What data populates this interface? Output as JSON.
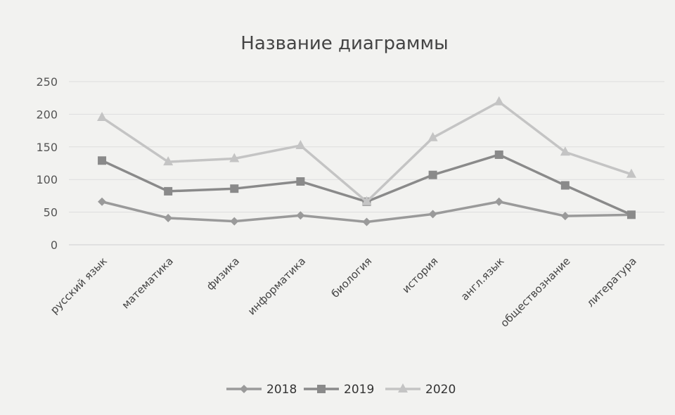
{
  "chart_data": {
    "type": "line",
    "title": "Название диаграммы",
    "xlabel": "",
    "ylabel": "",
    "ylim": [
      0,
      250
    ],
    "yticks": [
      0,
      50,
      100,
      150,
      200,
      250
    ],
    "grid": true,
    "legend_position": "bottom",
    "categories": [
      "русский язык",
      "математика",
      "физика",
      "информатика",
      "биология",
      "история",
      "англ.язык",
      "обществознание",
      "литература"
    ],
    "series": [
      {
        "name": "2018",
        "marker": "diamond",
        "color": "#9a9a9a",
        "values": [
          66,
          41,
          36,
          45,
          35,
          47,
          66,
          44,
          46
        ]
      },
      {
        "name": "2019",
        "marker": "square",
        "color": "#8a8a8a",
        "values": [
          129,
          82,
          86,
          97,
          66,
          107,
          138,
          91,
          46
        ]
      },
      {
        "name": "2020",
        "marker": "triangle",
        "color": "#c4c4c4",
        "values": [
          195,
          127,
          132,
          152,
          66,
          164,
          219,
          142,
          108
        ]
      }
    ]
  }
}
